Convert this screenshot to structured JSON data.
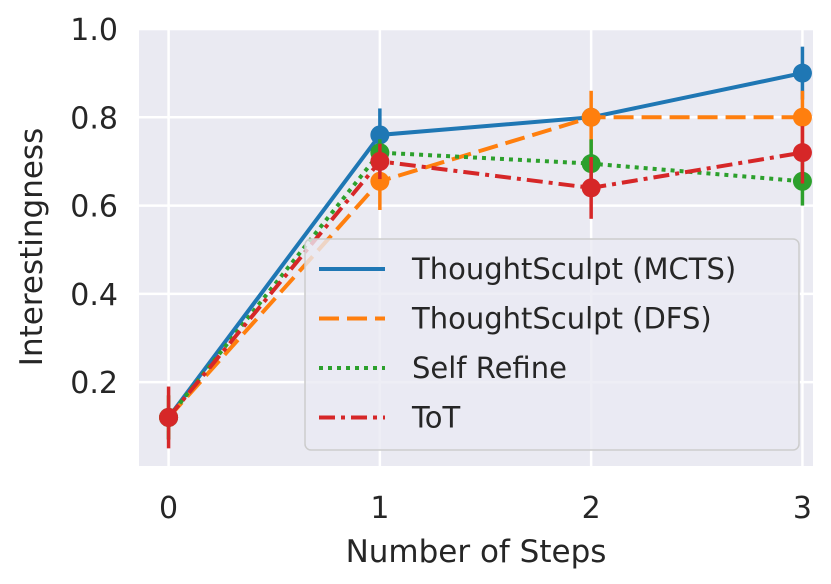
{
  "chart_data": {
    "type": "line",
    "title": "",
    "xlabel": "Number of Steps",
    "ylabel": "Interestingness",
    "x": [
      0,
      1,
      2,
      3
    ],
    "xlim": [
      -0.14,
      3.05
    ],
    "ylim": [
      0.01,
      1.0
    ],
    "xticks": [
      "0",
      "1",
      "2",
      "3"
    ],
    "yticks": [
      "0.2",
      "0.4",
      "0.6",
      "0.8",
      "1.0"
    ],
    "grid": true,
    "legend_position": "lower-right",
    "series": [
      {
        "name": "ThoughtSculpt (MCTS)",
        "color": "#1f77b4",
        "dash": "solid",
        "values": [
          0.12,
          0.76,
          0.8,
          0.9
        ],
        "err": [
          [
            0.07,
            0.09
          ],
          [
            0.72,
            0.82
          ],
          [
            0.78,
            0.82
          ],
          [
            0.84,
            0.96
          ]
        ]
      },
      {
        "name": "ThoughtSculpt (DFS)",
        "color": "#ff7f0e",
        "dash": "dashed",
        "values": [
          0.12,
          0.655,
          0.8,
          0.8
        ],
        "err": [
          [
            0.07,
            0.17
          ],
          [
            0.59,
            0.72
          ],
          [
            0.72,
            0.86
          ],
          [
            0.74,
            0.86
          ]
        ]
      },
      {
        "name": "Self Refine",
        "color": "#2ca02c",
        "dash": "dotted",
        "values": [
          0.12,
          0.72,
          0.695,
          0.655
        ],
        "err": [
          [
            0.07,
            0.17
          ],
          [
            0.69,
            0.75
          ],
          [
            0.64,
            0.75
          ],
          [
            0.6,
            0.71
          ]
        ]
      },
      {
        "name": "ToT",
        "color": "#d62728",
        "dash": "dashdot",
        "values": [
          0.12,
          0.7,
          0.64,
          0.72
        ],
        "err": [
          [
            0.05,
            0.19
          ],
          [
            0.66,
            0.74
          ],
          [
            0.57,
            0.71
          ],
          [
            0.65,
            0.78
          ]
        ]
      }
    ]
  }
}
